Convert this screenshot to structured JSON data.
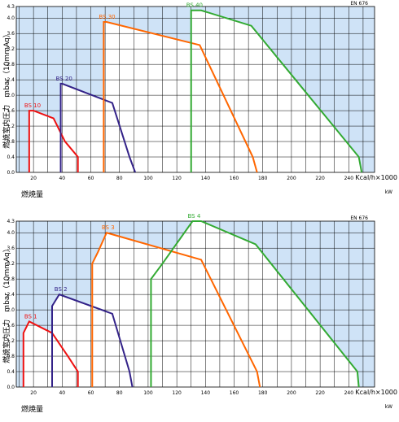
{
  "chart_data": [
    {
      "type": "line",
      "standard": "EN 676",
      "ylabel": "燃焼室内圧力　mbar（10mmAq）",
      "xlabel": "燃焼量",
      "x_unit_kcal": "Kcal/h×1000",
      "x_unit_kw": "kW",
      "yticks": [
        "0.0",
        "0.4",
        "0.8",
        "1.2",
        "1.6",
        "2.0",
        "2.4",
        "2.8",
        "3.2",
        "3.6",
        "4.0",
        "4.3"
      ],
      "xticks": [
        "20",
        "40",
        "60",
        "80",
        "100",
        "120",
        "140",
        "160",
        "180",
        "200",
        "220",
        "240"
      ],
      "xlim": [
        8,
        258
      ],
      "ylim": [
        0,
        4.3
      ],
      "grid": true,
      "series": [
        {
          "name": "BS 10",
          "color": "#ee1111",
          "points": [
            [
              17,
              0.0
            ],
            [
              17,
              1.6
            ],
            [
              20,
              1.6
            ],
            [
              34,
              1.4
            ],
            [
              42,
              0.8
            ],
            [
              51,
              0.4
            ],
            [
              51,
              0.0
            ]
          ]
        },
        {
          "name": "BS 20",
          "color": "#332288",
          "points": [
            [
              39,
              0.0
            ],
            [
              39,
              2.3
            ],
            [
              40,
              2.3
            ],
            [
              75,
              1.8
            ],
            [
              87,
              0.4
            ],
            [
              91,
              0.0
            ]
          ]
        },
        {
          "name": "BS 30",
          "color": "#ff6600",
          "points": [
            [
              69,
              0.0
            ],
            [
              69,
              3.9
            ],
            [
              71,
              3.9
            ],
            [
              136,
              3.3
            ],
            [
              173,
              0.4
            ],
            [
              176,
              0.0
            ]
          ]
        },
        {
          "name": "BS 40",
          "color": "#33aa33",
          "points": [
            [
              130,
              0.0
            ],
            [
              130,
              4.2
            ],
            [
              137,
              4.2
            ],
            [
              172,
              3.8
            ],
            [
              247,
              0.4
            ],
            [
              249,
              0.0
            ]
          ]
        }
      ]
    },
    {
      "type": "line",
      "standard": "EN 676",
      "ylabel": "燃焼室内圧力　mbar（10mmAq）",
      "xlabel": "燃焼量",
      "x_unit_kcal": "Kcal/h×1000",
      "x_unit_kw": "kW",
      "yticks": [
        "0.0",
        "0.4",
        "0.8",
        "1.2",
        "1.6",
        "2.0",
        "2.4",
        "2.8",
        "3.2",
        "3.6",
        "4.0",
        "4.3"
      ],
      "xticks": [
        "20",
        "40",
        "60",
        "80",
        "100",
        "120",
        "140",
        "160",
        "180",
        "200",
        "220",
        "240"
      ],
      "xlim": [
        8,
        258
      ],
      "ylim": [
        0,
        4.3
      ],
      "grid": true,
      "series": [
        {
          "name": "BS 1",
          "color": "#ee1111",
          "points": [
            [
              13,
              0.0
            ],
            [
              13,
              1.4
            ],
            [
              17,
              1.7
            ],
            [
              33,
              1.4
            ],
            [
              44,
              0.8
            ],
            [
              51,
              0.4
            ],
            [
              51,
              0.0
            ]
          ]
        },
        {
          "name": "BS 2",
          "color": "#332288",
          "points": [
            [
              33,
              0.0
            ],
            [
              33,
              2.1
            ],
            [
              38,
              2.4
            ],
            [
              75,
              1.9
            ],
            [
              87,
              0.4
            ],
            [
              89,
              0.0
            ]
          ]
        },
        {
          "name": "BS 3",
          "color": "#ff6600",
          "points": [
            [
              61,
              0.0
            ],
            [
              61,
              3.2
            ],
            [
              65,
              3.5
            ],
            [
              71,
              4.0
            ],
            [
              137,
              3.3
            ],
            [
              176,
              0.4
            ],
            [
              178,
              0.0
            ]
          ]
        },
        {
          "name": "BS 4",
          "color": "#33aa33",
          "points": [
            [
              102,
              0.0
            ],
            [
              102,
              2.8
            ],
            [
              110,
              3.2
            ],
            [
              131,
              4.3
            ],
            [
              137,
              4.3
            ],
            [
              175,
              3.7
            ],
            [
              246,
              0.4
            ],
            [
              247,
              0.0
            ]
          ]
        }
      ]
    }
  ]
}
